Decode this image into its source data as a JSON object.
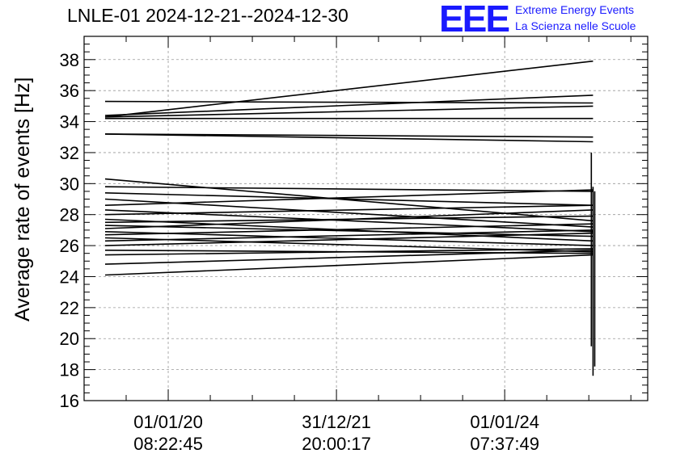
{
  "header": {
    "title": "LNLE-01 2024-12-21--2024-12-30",
    "logo_text": "EEE",
    "logo_line1": "Extreme Energy Events",
    "logo_line2": "La Scienza nelle Scuole"
  },
  "colors": {
    "logo": "#1a1aff",
    "trace": "#000000",
    "grid": "#999999"
  },
  "chart_data": {
    "type": "line",
    "title": "LNLE-01 2024-12-21--2024-12-30",
    "xlabel": "",
    "ylabel": "Average rate of events [Hz]",
    "ylim": [
      16,
      39.5
    ],
    "xlim": [
      -1.0,
      5.7
    ],
    "y_ticks": [
      16,
      18,
      20,
      22,
      24,
      26,
      28,
      30,
      32,
      34,
      36,
      38
    ],
    "x_ticks": [
      {
        "x": 0,
        "date": "01/01/20",
        "time": "08:22:45"
      },
      {
        "x": 2,
        "date": "31/12/21",
        "time": "20:00:17"
      },
      {
        "x": 4,
        "date": "01/01/24",
        "time": "07:37:49"
      }
    ],
    "grid": true,
    "series": [
      {
        "x": [
          -0.75,
          5.05
        ],
        "y": [
          35.3,
          35.2
        ]
      },
      {
        "x": [
          -0.75,
          5.05
        ],
        "y": [
          34.3,
          37.9
        ]
      },
      {
        "x": [
          -0.75,
          5.05
        ],
        "y": [
          34.4,
          35.7
        ]
      },
      {
        "x": [
          -0.75,
          5.05
        ],
        "y": [
          34.2,
          34.2
        ]
      },
      {
        "x": [
          -0.75,
          5.05
        ],
        "y": [
          34.3,
          35.0
        ]
      },
      {
        "x": [
          -0.75,
          5.05
        ],
        "y": [
          33.2,
          32.7
        ]
      },
      {
        "x": [
          -0.75,
          5.05
        ],
        "y": [
          33.2,
          33.0
        ]
      },
      {
        "x": [
          -0.75,
          5.05
        ],
        "y": [
          30.3,
          27.6
        ]
      },
      {
        "x": [
          -0.75,
          5.05
        ],
        "y": [
          29.8,
          29.5
        ]
      },
      {
        "x": [
          -0.75,
          5.05
        ],
        "y": [
          29.4,
          28.6
        ]
      },
      {
        "x": [
          -0.75,
          5.05
        ],
        "y": [
          29.0,
          27.2
        ]
      },
      {
        "x": [
          -0.75,
          5.05
        ],
        "y": [
          28.6,
          29.6
        ]
      },
      {
        "x": [
          -0.75,
          5.05
        ],
        "y": [
          28.3,
          26.9
        ]
      },
      {
        "x": [
          -0.75,
          5.05
        ],
        "y": [
          28.0,
          28.6
        ]
      },
      {
        "x": [
          -0.75,
          5.05
        ],
        "y": [
          27.7,
          26.3
        ]
      },
      {
        "x": [
          -0.75,
          5.05
        ],
        "y": [
          27.5,
          27.9
        ]
      },
      {
        "x": [
          -0.75,
          5.05
        ],
        "y": [
          27.3,
          26.6
        ]
      },
      {
        "x": [
          -0.75,
          5.05
        ],
        "y": [
          27.1,
          28.3
        ]
      },
      {
        "x": [
          -0.75,
          5.05
        ],
        "y": [
          26.9,
          26.0
        ]
      },
      {
        "x": [
          -0.75,
          5.05
        ],
        "y": [
          26.7,
          27.4
        ]
      },
      {
        "x": [
          -0.75,
          5.05
        ],
        "y": [
          26.5,
          25.6
        ]
      },
      {
        "x": [
          -0.75,
          5.05
        ],
        "y": [
          26.3,
          27.0
        ]
      },
      {
        "x": [
          -0.75,
          5.05
        ],
        "y": [
          26.0,
          26.8
        ]
      },
      {
        "x": [
          -0.75,
          5.05
        ],
        "y": [
          25.7,
          25.5
        ]
      },
      {
        "x": [
          -0.75,
          5.05
        ],
        "y": [
          25.4,
          25.8
        ]
      },
      {
        "x": [
          -0.75,
          5.05
        ],
        "y": [
          24.8,
          25.7
        ]
      },
      {
        "x": [
          -0.75,
          5.05
        ],
        "y": [
          24.1,
          25.4
        ]
      },
      {
        "x": [
          5.05,
          5.05
        ],
        "y": [
          17.6,
          29.8
        ]
      },
      {
        "x": [
          5.03,
          5.03
        ],
        "y": [
          19.5,
          32.0
        ]
      },
      {
        "x": [
          5.07,
          5.07
        ],
        "y": [
          18.2,
          29.5
        ]
      }
    ]
  }
}
